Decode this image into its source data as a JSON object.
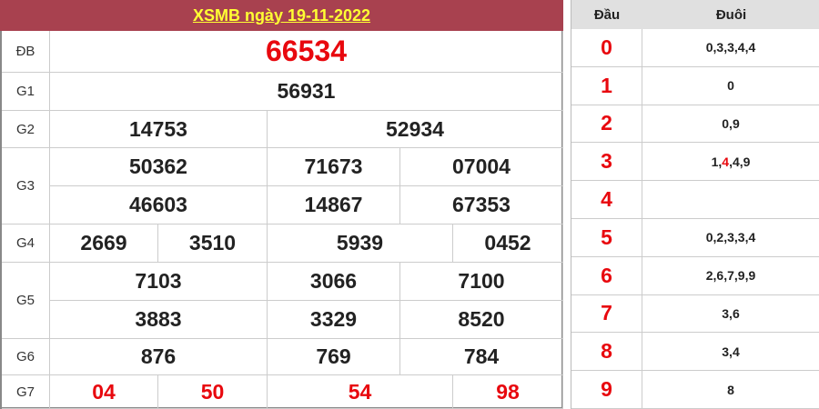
{
  "title": "XSMB ngày 19-11-2022",
  "prizes": {
    "db": {
      "label": "ĐB",
      "numbers": [
        "66534"
      ]
    },
    "g1": {
      "label": "G1",
      "numbers": [
        "56931"
      ]
    },
    "g2": {
      "label": "G2",
      "numbers": [
        "14753",
        "52934"
      ]
    },
    "g3": {
      "label": "G3",
      "numbers": [
        "50362",
        "71673",
        "07004",
        "46603",
        "14867",
        "67353"
      ]
    },
    "g4": {
      "label": "G4",
      "numbers": [
        "2669",
        "3510",
        "5939",
        "0452"
      ]
    },
    "g5": {
      "label": "G5",
      "numbers": [
        "7103",
        "3066",
        "7100",
        "3883",
        "3329",
        "8520"
      ]
    },
    "g6": {
      "label": "G6",
      "numbers": [
        "876",
        "769",
        "784"
      ]
    },
    "g7": {
      "label": "G7",
      "numbers": [
        "04",
        "50",
        "54",
        "98"
      ]
    }
  },
  "loto": {
    "header_dau": "Đầu",
    "header_duoi": "Đuôi",
    "rows": [
      {
        "dau": "0",
        "duoi": "0,3,3,4,4"
      },
      {
        "dau": "1",
        "duoi": "0"
      },
      {
        "dau": "2",
        "duoi": "0,9"
      },
      {
        "dau": "3",
        "duoi_parts": [
          "1,",
          "4",
          ",4,9"
        ],
        "highlight": "4"
      },
      {
        "dau": "4",
        "duoi": ""
      },
      {
        "dau": "5",
        "duoi": "0,2,3,3,4"
      },
      {
        "dau": "6",
        "duoi": "2,6,7,9,9"
      },
      {
        "dau": "7",
        "duoi": "3,6"
      },
      {
        "dau": "8",
        "duoi": "3,4"
      },
      {
        "dau": "9",
        "duoi": "8"
      }
    ]
  },
  "colors": {
    "header_bg": "#a8414f",
    "title": "#ffff33",
    "highlight": "#e8080e"
  }
}
